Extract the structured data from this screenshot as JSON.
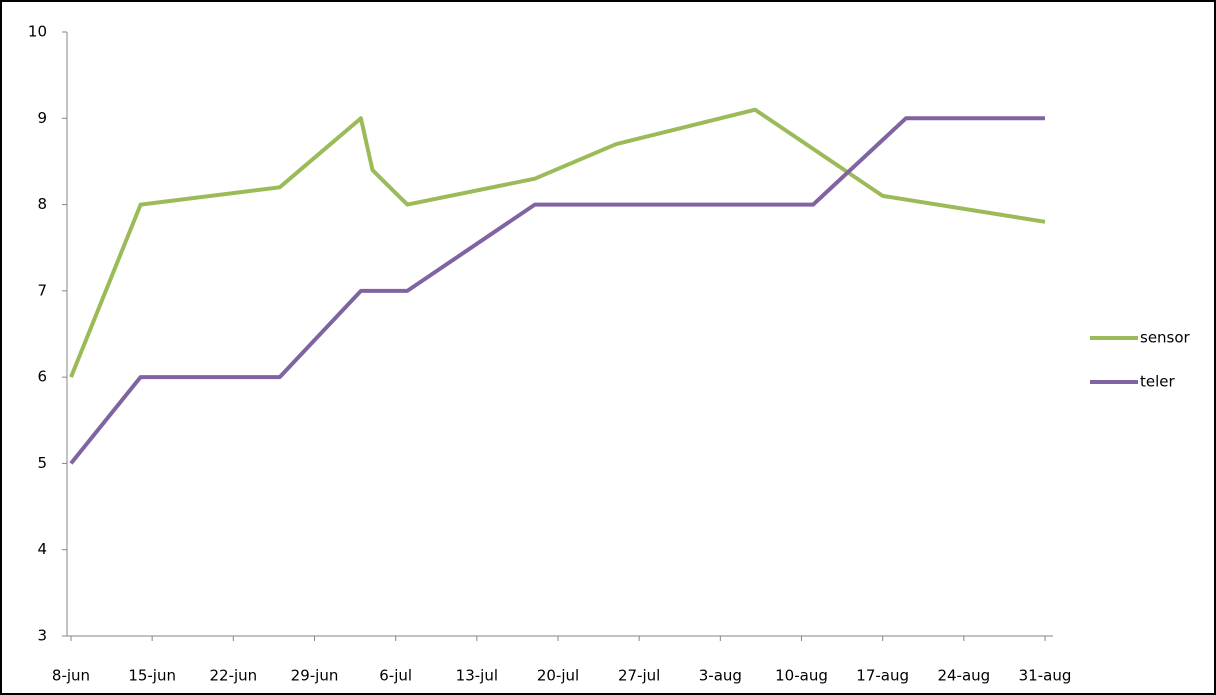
{
  "chart_data": {
    "type": "line",
    "xlim": [
      "8-jun",
      "31-aug"
    ],
    "xticks": [
      "8-jun",
      "15-jun",
      "22-jun",
      "29-jun",
      "6-jul",
      "13-jul",
      "20-jul",
      "27-jul",
      "3-aug",
      "10-aug",
      "17-aug",
      "24-aug",
      "31-aug"
    ],
    "ylim": [
      3,
      10
    ],
    "yticks": [
      3,
      4,
      5,
      6,
      7,
      8,
      9,
      10
    ],
    "legend": "right",
    "series": [
      {
        "name": "sensor",
        "color": "#9bbb59",
        "x": [
          "8-jun",
          "14-jun",
          "26-jun",
          "3-jul",
          "4-jul",
          "7-jul",
          "18-jul",
          "25-jul",
          "6-aug",
          "17-aug",
          "31-aug"
        ],
        "values": [
          6,
          8,
          8.2,
          9,
          8.4,
          8,
          8.3,
          8.7,
          9.1,
          8.1,
          7.8
        ]
      },
      {
        "name": "teler",
        "color": "#8064a2",
        "x": [
          "8-jun",
          "14-jun",
          "26-jun",
          "3-jul",
          "7-jul",
          "18-jul",
          "11-aug",
          "19-aug",
          "31-aug"
        ],
        "values": [
          5,
          6,
          6,
          7,
          7,
          8,
          8,
          9,
          9
        ]
      }
    ]
  }
}
